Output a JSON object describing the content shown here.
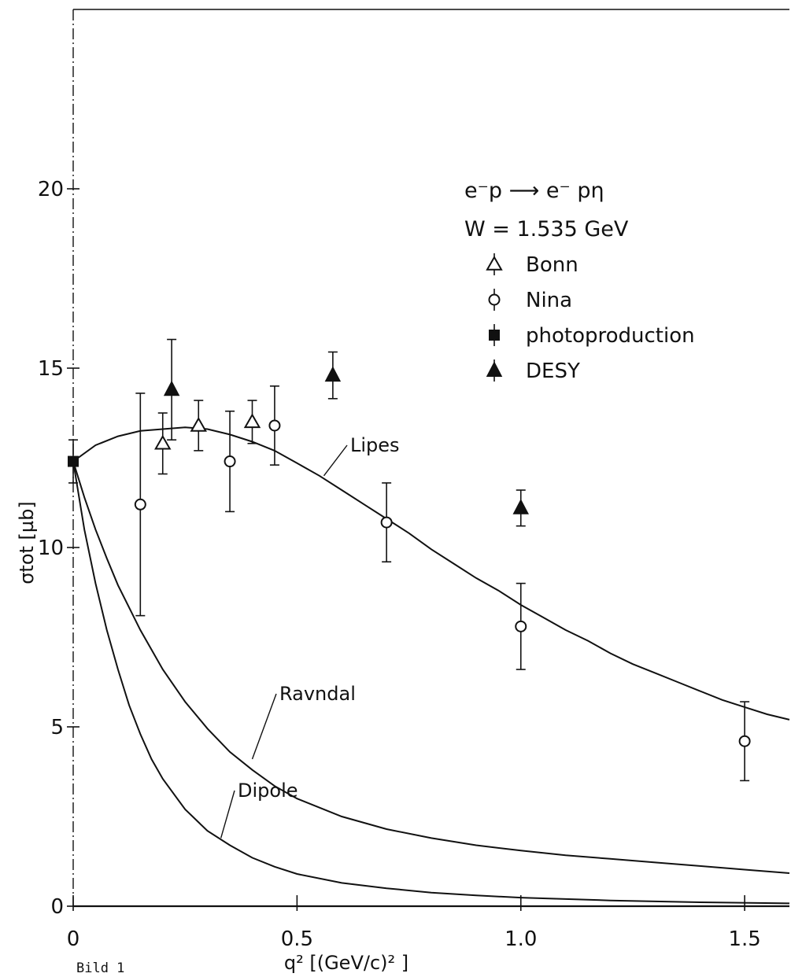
{
  "chart_data": {
    "type": "scatter",
    "xlabel": "q² [(GeV/c)² ]",
    "ylabel": "σtot [µb]",
    "xlim": [
      0,
      1.6
    ],
    "ylim": [
      0,
      25
    ],
    "x_ticks": [
      {
        "value": 0,
        "label": "0"
      },
      {
        "value": 0.5,
        "label": "0.5"
      },
      {
        "value": 1.0,
        "label": "1.0"
      },
      {
        "value": 1.5,
        "label": "1.5"
      }
    ],
    "y_ticks": [
      {
        "value": 0,
        "label": "0"
      },
      {
        "value": 5,
        "label": "5"
      },
      {
        "value": 10,
        "label": "10"
      },
      {
        "value": 15,
        "label": "15"
      },
      {
        "value": 20,
        "label": "20"
      }
    ],
    "legend": {
      "placement": "top-right",
      "reaction": "e⁻p ⟶ e⁻ pη",
      "energy": "W = 1.535 GeV"
    },
    "series": [
      {
        "name": "Bonn",
        "marker": "open-triangle",
        "points": [
          {
            "x": 0.2,
            "y": 12.9,
            "err": 0.85
          },
          {
            "x": 0.28,
            "y": 13.4,
            "err": 0.7
          },
          {
            "x": 0.4,
            "y": 13.5,
            "err": 0.6
          }
        ]
      },
      {
        "name": "Nina",
        "marker": "open-circle",
        "points": [
          {
            "x": 0.15,
            "y": 11.2,
            "err": 3.1
          },
          {
            "x": 0.35,
            "y": 12.4,
            "err": 1.4
          },
          {
            "x": 0.45,
            "y": 13.4,
            "err": 1.1
          },
          {
            "x": 0.7,
            "y": 10.7,
            "err": 1.1
          },
          {
            "x": 1.0,
            "y": 7.8,
            "err": 1.2
          },
          {
            "x": 1.5,
            "y": 4.6,
            "err": 1.1
          }
        ]
      },
      {
        "name": "photoproduction",
        "marker": "filled-square",
        "points": [
          {
            "x": 0.0,
            "y": 12.4,
            "err": 0.6
          }
        ]
      },
      {
        "name": "DESY",
        "marker": "filled-triangle",
        "points": [
          {
            "x": 0.22,
            "y": 14.4,
            "err": 1.4
          },
          {
            "x": 0.58,
            "y": 14.8,
            "err": 0.65
          },
          {
            "x": 1.0,
            "y": 11.1,
            "err": 0.5
          }
        ]
      }
    ],
    "curves": [
      {
        "name": "Lipes",
        "points": [
          [
            0,
            12.4
          ],
          [
            0.05,
            12.85
          ],
          [
            0.1,
            13.1
          ],
          [
            0.15,
            13.25
          ],
          [
            0.2,
            13.3
          ],
          [
            0.25,
            13.35
          ],
          [
            0.3,
            13.3
          ],
          [
            0.35,
            13.15
          ],
          [
            0.4,
            12.95
          ],
          [
            0.45,
            12.7
          ],
          [
            0.5,
            12.35
          ],
          [
            0.55,
            12.0
          ],
          [
            0.6,
            11.6
          ],
          [
            0.65,
            11.2
          ],
          [
            0.7,
            10.8
          ],
          [
            0.75,
            10.4
          ],
          [
            0.8,
            9.95
          ],
          [
            0.85,
            9.55
          ],
          [
            0.9,
            9.15
          ],
          [
            0.95,
            8.8
          ],
          [
            1.0,
            8.4
          ],
          [
            1.05,
            8.05
          ],
          [
            1.1,
            7.7
          ],
          [
            1.15,
            7.4
          ],
          [
            1.2,
            7.05
          ],
          [
            1.25,
            6.75
          ],
          [
            1.3,
            6.5
          ],
          [
            1.35,
            6.25
          ],
          [
            1.4,
            6.0
          ],
          [
            1.45,
            5.75
          ],
          [
            1.5,
            5.55
          ],
          [
            1.55,
            5.35
          ],
          [
            1.6,
            5.2
          ]
        ]
      },
      {
        "name": "Ravndal",
        "points": [
          [
            0,
            12.4
          ],
          [
            0.025,
            11.4
          ],
          [
            0.05,
            10.5
          ],
          [
            0.075,
            9.7
          ],
          [
            0.1,
            8.95
          ],
          [
            0.15,
            7.7
          ],
          [
            0.2,
            6.6
          ],
          [
            0.25,
            5.7
          ],
          [
            0.3,
            4.95
          ],
          [
            0.35,
            4.3
          ],
          [
            0.4,
            3.8
          ],
          [
            0.45,
            3.35
          ],
          [
            0.5,
            3.0
          ],
          [
            0.6,
            2.5
          ],
          [
            0.7,
            2.15
          ],
          [
            0.8,
            1.9
          ],
          [
            0.9,
            1.7
          ],
          [
            1.0,
            1.55
          ],
          [
            1.1,
            1.42
          ],
          [
            1.2,
            1.32
          ],
          [
            1.3,
            1.22
          ],
          [
            1.4,
            1.12
          ],
          [
            1.5,
            1.02
          ],
          [
            1.6,
            0.92
          ]
        ]
      },
      {
        "name": "Dipole",
        "points": [
          [
            0,
            12.4
          ],
          [
            0.025,
            10.5
          ],
          [
            0.05,
            9.0
          ],
          [
            0.075,
            7.7
          ],
          [
            0.1,
            6.6
          ],
          [
            0.125,
            5.6
          ],
          [
            0.15,
            4.8
          ],
          [
            0.175,
            4.1
          ],
          [
            0.2,
            3.55
          ],
          [
            0.25,
            2.7
          ],
          [
            0.3,
            2.1
          ],
          [
            0.35,
            1.7
          ],
          [
            0.4,
            1.35
          ],
          [
            0.45,
            1.1
          ],
          [
            0.5,
            0.9
          ],
          [
            0.6,
            0.65
          ],
          [
            0.7,
            0.5
          ],
          [
            0.8,
            0.38
          ],
          [
            0.9,
            0.3
          ],
          [
            1.0,
            0.24
          ],
          [
            1.2,
            0.16
          ],
          [
            1.4,
            0.11
          ],
          [
            1.6,
            0.08
          ]
        ]
      }
    ]
  },
  "caption": "Bild 1"
}
